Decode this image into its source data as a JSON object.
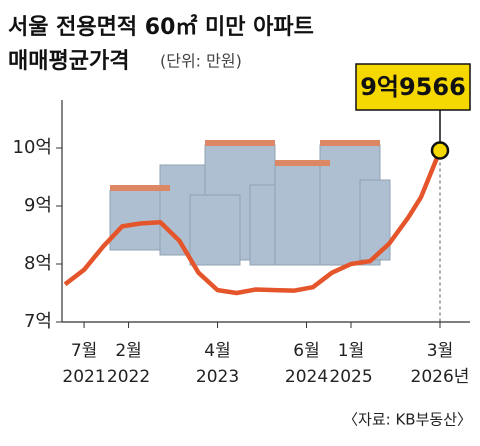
{
  "chart_data": {
    "type": "line",
    "title": [
      "서울 전용면적 60㎡ 미만 아파트",
      "매매평균가격"
    ],
    "subtitle": "(단위: 만원)",
    "source": "〈자료: KB부동산〉",
    "x": [
      "2021-04",
      "2021-07",
      "2021-10",
      "2022-01",
      "2022-04",
      "2022-07",
      "2022-10",
      "2023-01",
      "2023-04",
      "2023-07",
      "2023-10",
      "2024-01",
      "2024-04",
      "2024-07",
      "2024-10",
      "2025-01",
      "2025-04",
      "2025-07",
      "2025-10",
      "2025-12",
      "2026-03"
    ],
    "series": [
      {
        "name": "매매평균가격",
        "color": "#e5552b",
        "values": [
          76500,
          79000,
          83000,
          86500,
          87000,
          87200,
          84000,
          78500,
          75500,
          75000,
          75600,
          75500,
          75400,
          76000,
          78500,
          80000,
          80500,
          83500,
          88000,
          91500,
          99566
        ],
        "value_labels": [
          null,
          null,
          null,
          null,
          null,
          null,
          null,
          null,
          null,
          null,
          null,
          null,
          null,
          null,
          null,
          null,
          null,
          null,
          null,
          null,
          "9억9566"
        ]
      }
    ],
    "xlim": [
      "2021-04",
      "2026-03"
    ],
    "xticks": [
      {
        "value": "2021-07",
        "label": "7월\n2021"
      },
      {
        "value": "2022-02",
        "label": "2월\n2022"
      },
      {
        "value": "2023-04",
        "label": "4월\n2023"
      },
      {
        "value": "2024-06",
        "label": "6월\n2024"
      },
      {
        "value": "2025-01",
        "label": "1월\n2025"
      },
      {
        "value": "2026-03",
        "label": "3월\n2026년"
      }
    ],
    "ylim": [
      70000,
      100000
    ],
    "yticks": [
      {
        "value": 70000,
        "label": "7억"
      },
      {
        "value": 80000,
        "label": "8억"
      },
      {
        "value": 90000,
        "label": "9억"
      },
      {
        "value": 100000,
        "label": "10억"
      }
    ],
    "grid": false
  }
}
